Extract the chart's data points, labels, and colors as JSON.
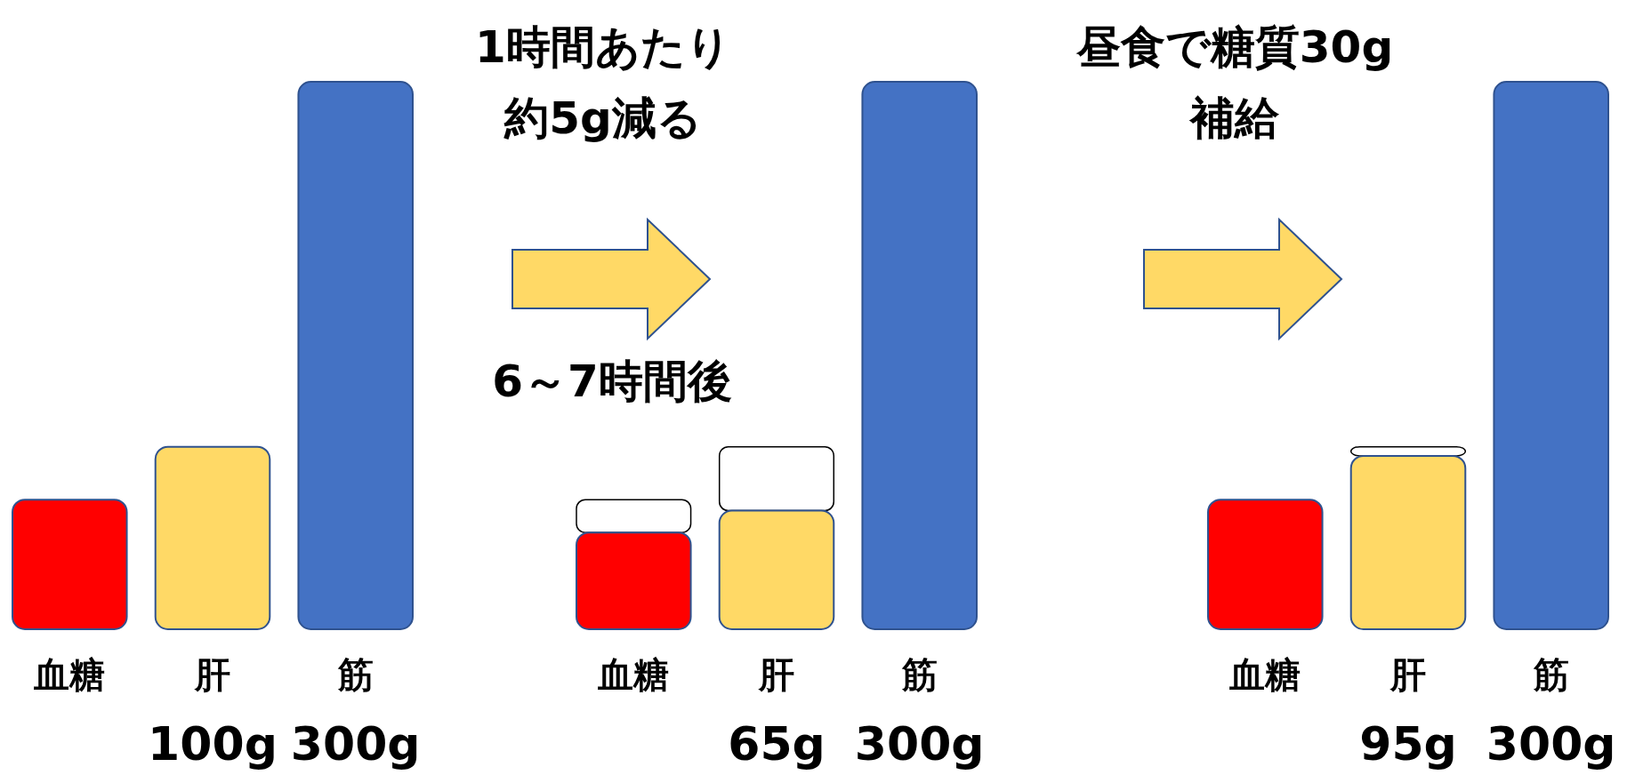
{
  "chart_data": [
    {
      "type": "bar",
      "stacked": true,
      "categories": [
        "血糖",
        "肝",
        "筋"
      ],
      "series": [
        {
          "colors": [
            "#ff0000",
            "#ffd966",
            "#4472c4"
          ],
          "values": [
            71,
            100,
            300
          ],
          "value_labels": [
            null,
            "100g",
            "300g"
          ]
        }
      ]
    },
    {
      "type": "bar",
      "stacked": true,
      "title": "6～7時間後",
      "annotations": [
        "1時間あたり",
        "約5g減る"
      ],
      "categories": [
        "血糖",
        "肝",
        "筋"
      ],
      "series": [
        {
          "colors": [
            "#ff0000",
            "#ffd966",
            "#4472c4"
          ],
          "values": [
            53,
            65,
            300
          ],
          "value_labels": [
            null,
            "65g",
            "300g"
          ]
        },
        {
          "color": "#ffffff",
          "values": [
            18,
            35,
            0
          ]
        }
      ]
    },
    {
      "type": "bar",
      "stacked": true,
      "annotations": [
        "昼食で糖質30g",
        "補給"
      ],
      "categories": [
        "血糖",
        "肝",
        "筋"
      ],
      "series": [
        {
          "colors": [
            "#ff0000",
            "#ffd966",
            "#4472c4"
          ],
          "values": [
            71,
            95,
            300
          ],
          "value_labels": [
            null,
            "95g",
            "300g"
          ]
        },
        {
          "color": "#ffffff",
          "values": [
            0,
            5,
            0
          ]
        }
      ]
    }
  ]
}
